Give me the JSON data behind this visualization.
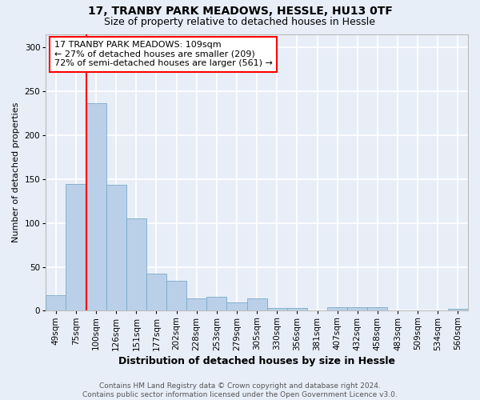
{
  "title": "17, TRANBY PARK MEADOWS, HESSLE, HU13 0TF",
  "subtitle": "Size of property relative to detached houses in Hessle",
  "xlabel": "Distribution of detached houses by size in Hessle",
  "ylabel": "Number of detached properties",
  "categories": [
    "49sqm",
    "75sqm",
    "100sqm",
    "126sqm",
    "151sqm",
    "177sqm",
    "202sqm",
    "228sqm",
    "253sqm",
    "279sqm",
    "305sqm",
    "330sqm",
    "356sqm",
    "381sqm",
    "407sqm",
    "432sqm",
    "458sqm",
    "483sqm",
    "509sqm",
    "534sqm",
    "560sqm"
  ],
  "values": [
    18,
    144,
    236,
    143,
    105,
    42,
    34,
    14,
    16,
    10,
    14,
    3,
    3,
    0,
    4,
    4,
    4,
    0,
    0,
    0,
    2
  ],
  "bar_color": "#bad0e8",
  "bar_edge_color": "#7aaac8",
  "annotation_text_lines": [
    "17 TRANBY PARK MEADOWS: 109sqm",
    "← 27% of detached houses are smaller (209)",
    "72% of semi-detached houses are larger (561) →"
  ],
  "annotation_box_color": "white",
  "annotation_box_edge_color": "red",
  "vline_color": "red",
  "vline_x_index": 1.5,
  "ylim": [
    0,
    315
  ],
  "yticks": [
    0,
    50,
    100,
    150,
    200,
    250,
    300
  ],
  "background_color": "#e8eef8",
  "plot_background_color": "#e8eef8",
  "grid_color": "white",
  "footer_line1": "Contains HM Land Registry data © Crown copyright and database right 2024.",
  "footer_line2": "Contains public sector information licensed under the Open Government Licence v3.0.",
  "title_fontsize": 10,
  "subtitle_fontsize": 9,
  "xlabel_fontsize": 9,
  "ylabel_fontsize": 8,
  "tick_fontsize": 7.5,
  "footer_fontsize": 6.5,
  "annotation_fontsize": 8
}
